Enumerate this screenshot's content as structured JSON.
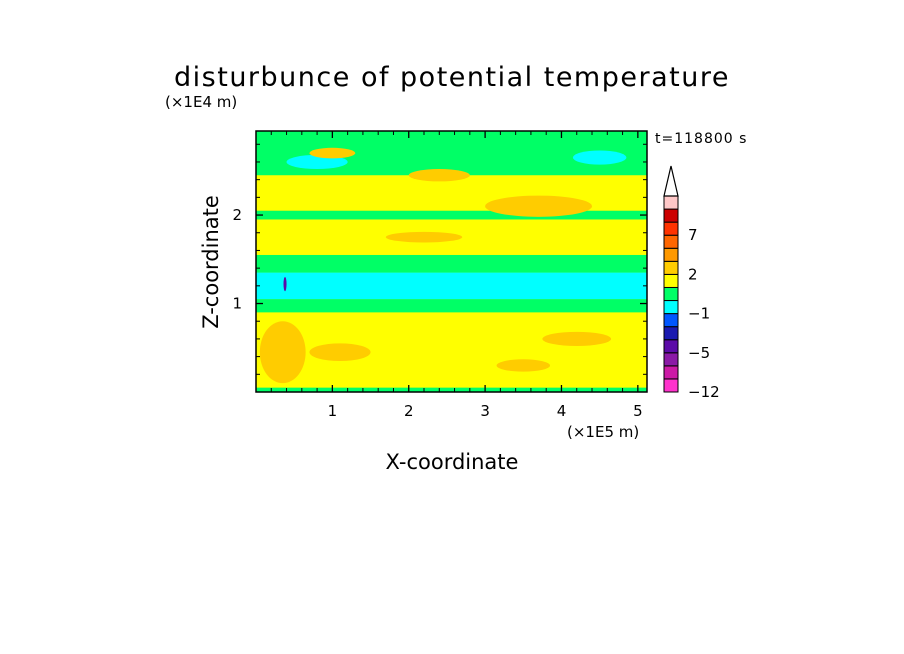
{
  "chart_data": {
    "type": "heatmap",
    "title": "disturbunce of potential temperature",
    "xlabel": "X-coordinate",
    "ylabel": "Z-coordinate",
    "x_unit": "(×1E5 m)",
    "y_unit": "(×1E4 m)",
    "time_label": "t=118800 s",
    "xlim": [
      0,
      5.12
    ],
    "ylim": [
      0,
      2.95
    ],
    "x_ticks": [
      "1",
      "2",
      "3",
      "4",
      "5"
    ],
    "y_ticks": [
      "1",
      "2"
    ],
    "colorbar": {
      "levels": [
        -12,
        -10,
        -8,
        -5,
        -4,
        -3,
        -1,
        0,
        1,
        2,
        3,
        5,
        7,
        8,
        10
      ],
      "colors": [
        "#ff33cc",
        "#cc1aa6",
        "#8b1aa6",
        "#5c0ba8",
        "#1a1ab0",
        "#0057ff",
        "#00ffff",
        "#00ff66",
        "#ffff00",
        "#ffcc00",
        "#ff9900",
        "#ff6600",
        "#ff3300",
        "#cc0000",
        "#ffc8c8"
      ],
      "tick_labels": [
        "7",
        "2",
        "-1",
        "-5",
        "-12"
      ],
      "tick_values": [
        7,
        2,
        -1,
        -5,
        -12
      ],
      "extend": "max"
    },
    "bands": [
      {
        "z0": 0.0,
        "z1": 0.05,
        "value": 0.5
      },
      {
        "z0": 0.05,
        "z1": 0.9,
        "value": 1.5
      },
      {
        "z0": 0.9,
        "z1": 1.05,
        "value": 0.5
      },
      {
        "z0": 1.05,
        "z1": 1.35,
        "value": -0.5
      },
      {
        "z0": 1.35,
        "z1": 1.55,
        "value": 0.5
      },
      {
        "z0": 1.55,
        "z1": 1.95,
        "value": 1.5
      },
      {
        "z0": 1.95,
        "z1": 2.05,
        "value": 0.5
      },
      {
        "z0": 2.05,
        "z1": 2.45,
        "value": 1.5
      },
      {
        "z0": 2.45,
        "z1": 2.95,
        "value": 0.5
      }
    ],
    "patches": [
      {
        "x": 0.35,
        "z": 0.45,
        "rx": 0.3,
        "rz": 0.35,
        "value": 2.5
      },
      {
        "x": 1.1,
        "z": 0.45,
        "rx": 0.4,
        "rz": 0.1,
        "value": 2.5
      },
      {
        "x": 3.5,
        "z": 0.3,
        "rx": 0.35,
        "rz": 0.07,
        "value": 2.5
      },
      {
        "x": 4.2,
        "z": 0.6,
        "rx": 0.45,
        "rz": 0.08,
        "value": 2.5
      },
      {
        "x": 0.8,
        "z": 2.6,
        "rx": 0.4,
        "rz": 0.08,
        "value": -0.5
      },
      {
        "x": 4.5,
        "z": 2.65,
        "rx": 0.35,
        "rz": 0.08,
        "value": -0.5
      },
      {
        "x": 1.0,
        "z": 2.7,
        "rx": 0.3,
        "rz": 0.06,
        "value": 2.5
      },
      {
        "x": 3.7,
        "z": 2.1,
        "rx": 0.7,
        "rz": 0.12,
        "value": 2.5
      },
      {
        "x": 2.4,
        "z": 2.45,
        "rx": 0.4,
        "rz": 0.07,
        "value": 2.5
      },
      {
        "x": 2.2,
        "z": 1.75,
        "rx": 0.5,
        "rz": 0.06,
        "value": 2.5
      },
      {
        "x": 0.38,
        "z": 1.22,
        "rx": 0.02,
        "rz": 0.08,
        "value": -4.5
      }
    ]
  }
}
